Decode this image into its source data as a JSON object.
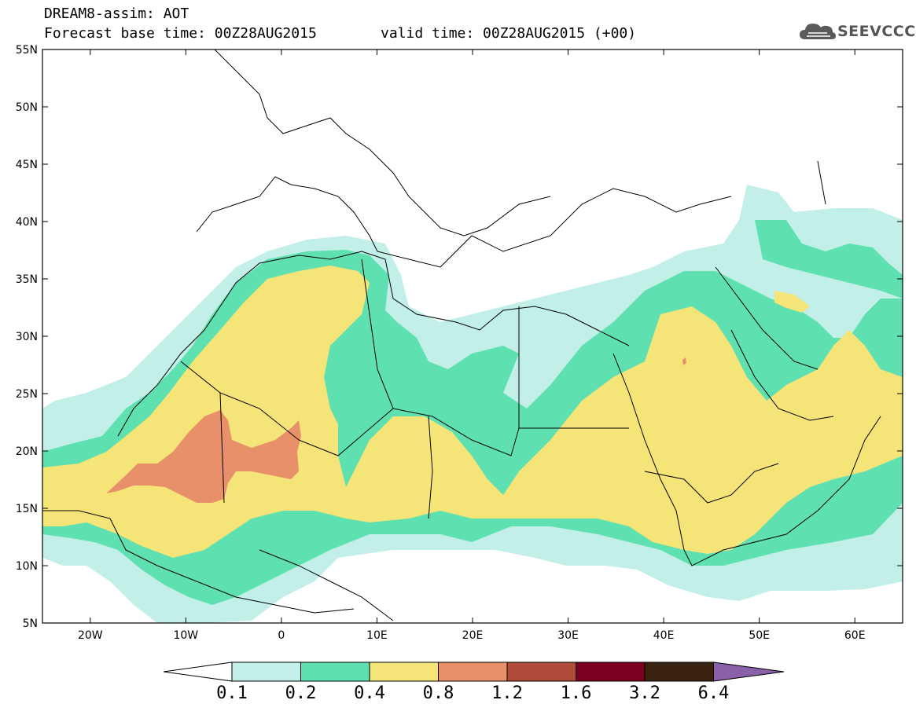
{
  "header": {
    "line1": "DREAM8-assim: AOT",
    "line2": "Forecast base time: 00Z28AUG2015",
    "valid": "valid time: 00Z28AUG2015 (+00)"
  },
  "logo": {
    "text": "SEEVCCC",
    "icon": "cloud-icon"
  },
  "axes": {
    "lon_ticks": [
      "20W",
      "10W",
      "0",
      "10E",
      "20E",
      "30E",
      "40E",
      "50E",
      "60E"
    ],
    "lat_ticks": [
      "55N",
      "50N",
      "45N",
      "40N",
      "35N",
      "30N",
      "25N",
      "20N",
      "15N",
      "10N",
      "5N"
    ],
    "lon_range": [
      -25,
      65
    ],
    "lat_range": [
      5,
      55
    ]
  },
  "colorbar": {
    "labels": [
      "0.1",
      "0.2",
      "0.4",
      "0.8",
      "1.2",
      "1.6",
      "3.2",
      "6.4"
    ],
    "colors": [
      "#c2f0e8",
      "#5ee0b0",
      "#f5e478",
      "#e8906a",
      "#b04a3a",
      "#7a0020",
      "#3a2210",
      "#8a60a8"
    ]
  },
  "field": {
    "colors": {
      "aot_0_1": "#c2f0e8",
      "aot_0_2": "#5ee0b0",
      "aot_0_4": "#f5e478",
      "aot_0_8": "#e8906a"
    }
  }
}
